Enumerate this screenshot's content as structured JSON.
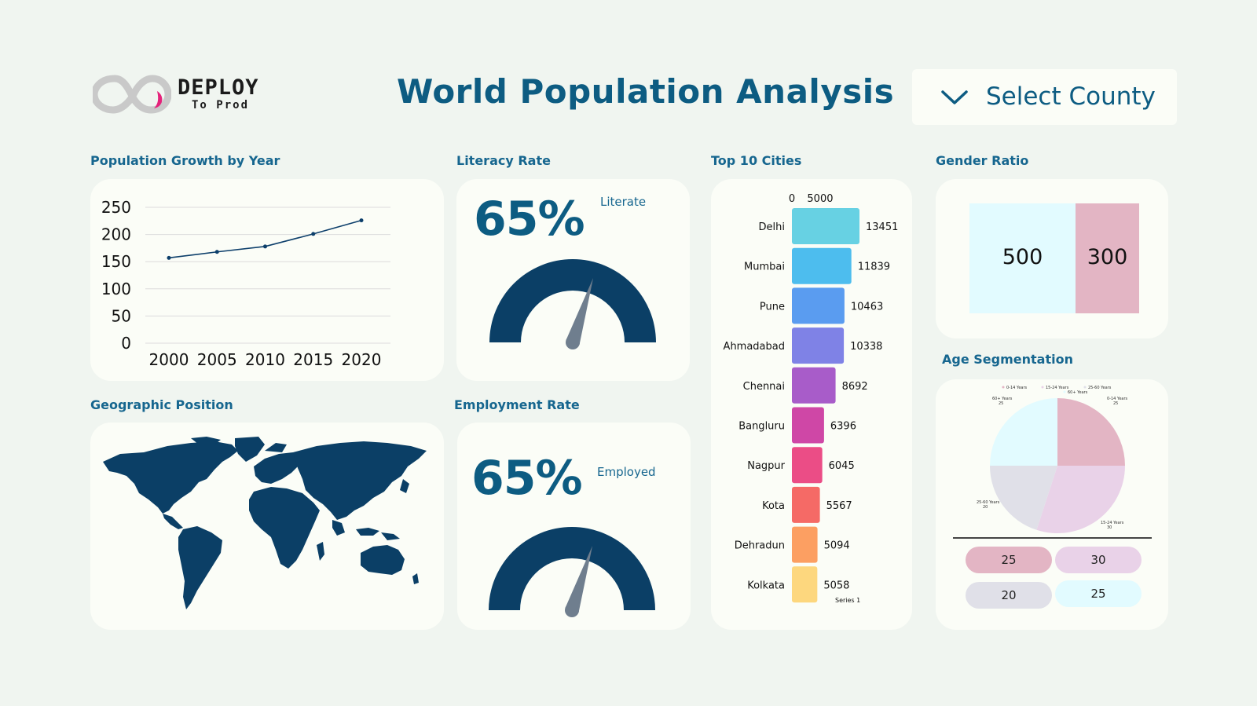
{
  "logo": {
    "line1": "DEPLOY",
    "line2": "To Prod"
  },
  "header": {
    "title": "World Population Analysis"
  },
  "select": {
    "label": "Select County"
  },
  "sections": {
    "population_growth": "Population Growth by Year",
    "literacy": "Literacy Rate",
    "top_cities": "Top 10 Cities",
    "gender": "Gender Ratio",
    "geo": "Geographic Position",
    "employment": "Employment Rate",
    "age": "Age Segmentation"
  },
  "literacy": {
    "value": "65%",
    "label": "Literate",
    "fraction": 0.65
  },
  "employment": {
    "value": "65%",
    "label": "Employed",
    "fraction": 0.65
  },
  "gender": {
    "male": "500",
    "female": "300",
    "colors": [
      "#e2fbff",
      "#e3b5c4"
    ]
  },
  "age_pills": [
    {
      "value": "25",
      "color": "#e3b5c4"
    },
    {
      "value": "30",
      "color": "#e9d2e8"
    },
    {
      "value": "20",
      "color": "#e0e0e8"
    },
    {
      "value": "25",
      "color": "#e2fbff"
    }
  ],
  "chart_data": [
    {
      "type": "line",
      "x": [
        "2000",
        "2005",
        "2010",
        "2015",
        "2020"
      ],
      "values": [
        157,
        168,
        178,
        201,
        226
      ],
      "ylim": [
        0,
        250
      ],
      "yticks": [
        "0",
        "50",
        "100",
        "150",
        "200",
        "250"
      ],
      "grid": true,
      "color": "#0d3f6b"
    },
    {
      "type": "bar",
      "orientation": "horizontal",
      "categories": [
        "Delhi",
        "Mumbai",
        "Pune",
        "Ahmadabad",
        "Chennai",
        "Bangluru",
        "Nagpur",
        "Kota",
        "Dehradun",
        "Kolkata"
      ],
      "values": [
        13451,
        11839,
        10463,
        10338,
        8692,
        6396,
        6045,
        5567,
        5094,
        5058
      ],
      "axis_ticks": [
        "0",
        "5000"
      ],
      "legend": "Series 1",
      "colors": [
        "#67d1e3",
        "#4dbdee",
        "#5a9cf0",
        "#7f82e6",
        "#a85cc9",
        "#cf47a6",
        "#eb4d86",
        "#f56a66",
        "#fc9f62",
        "#fdd77e"
      ]
    },
    {
      "type": "pie",
      "labels": [
        "0-14 Years",
        "15-24 Years",
        "25-60 Years",
        "60+ Years"
      ],
      "values": [
        25,
        30,
        20,
        25
      ],
      "colors": [
        "#e3b5c4",
        "#e9d2e8",
        "#e0e0e8",
        "#e2fbff"
      ],
      "legend": "top",
      "label_values": [
        "25",
        "30",
        "20",
        "25"
      ]
    }
  ]
}
